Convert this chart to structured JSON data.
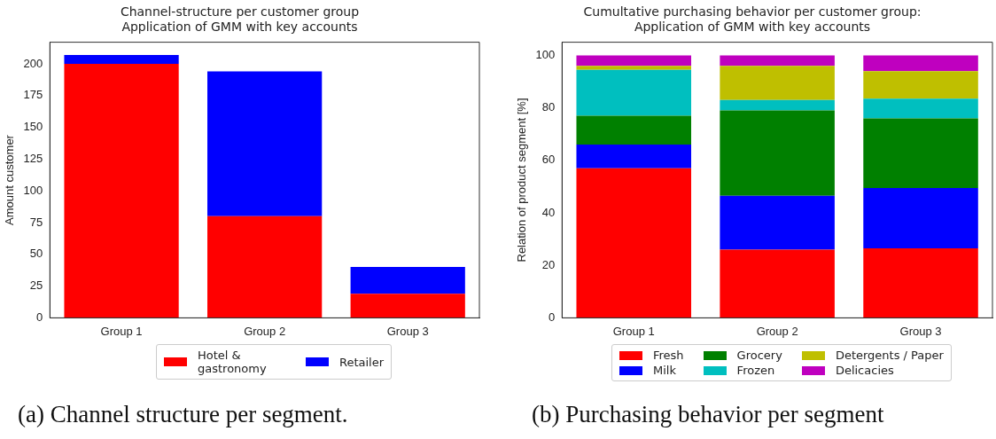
{
  "chart_data": [
    {
      "type": "bar",
      "title": "Channel-structure per customer group\nApplication of GMM with key accounts",
      "ylabel": "Amount customer",
      "categories": [
        "Group 1",
        "Group 2",
        "Group 3"
      ],
      "stacked": true,
      "ylim": [
        0,
        217
      ],
      "yticks": [
        0,
        25,
        50,
        75,
        100,
        125,
        150,
        175,
        200
      ],
      "grid": false,
      "legend": "bottom",
      "series": [
        {
          "name": "Hotel & gastronomy",
          "color": "#ff0000",
          "values": [
            200,
            80,
            19
          ]
        },
        {
          "name": "Retailer",
          "color": "#0000ff",
          "values": [
            7,
            114,
            21
          ]
        }
      ],
      "annotations": [
        "(a) Channel structure per segment."
      ]
    },
    {
      "type": "bar",
      "title": "Cumultative purchasing behavior per customer group:\nApplication of GMM with key accounts",
      "ylabel": "Relation of product segment [%]",
      "categories": [
        "Group 1",
        "Group 2",
        "Group 3"
      ],
      "stacked": true,
      "ylim": [
        0,
        105
      ],
      "yticks": [
        0,
        20,
        40,
        60,
        80,
        100
      ],
      "grid": false,
      "legend": "bottom",
      "series": [
        {
          "name": "Fresh",
          "color": "#ff0000",
          "values": [
            57,
            26,
            26.5
          ]
        },
        {
          "name": "Milk",
          "color": "#0000ff",
          "values": [
            9,
            20.5,
            23
          ]
        },
        {
          "name": "Grocery",
          "color": "#008000",
          "values": [
            11,
            32.5,
            26.5
          ]
        },
        {
          "name": "Frozen",
          "color": "#00bfbf",
          "values": [
            17.5,
            4,
            7.5
          ]
        },
        {
          "name": "Detergents / Paper",
          "color": "#bfbf00",
          "values": [
            1.5,
            13,
            10.5
          ]
        },
        {
          "name": "Delicacies",
          "color": "#bf00bf",
          "values": [
            4,
            4,
            6
          ]
        }
      ],
      "annotations": [
        "(b) Purchasing behavior per segment"
      ]
    }
  ]
}
